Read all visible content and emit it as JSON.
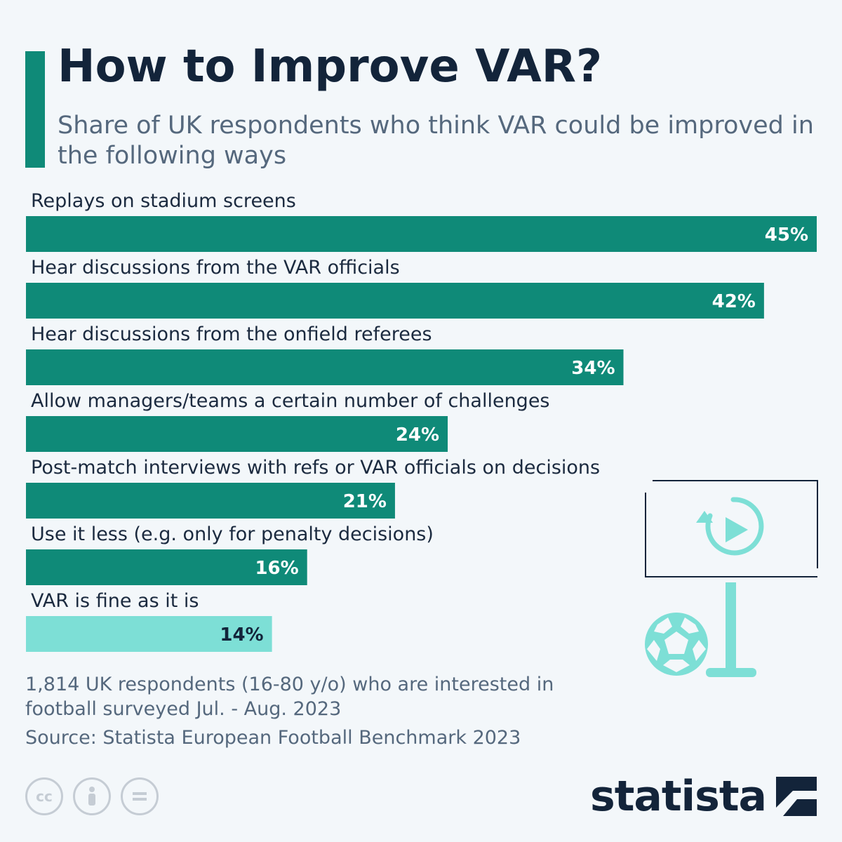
{
  "title": "How to Improve VAR?",
  "subtitle": "Share of UK respondents who think VAR could be improved in the following ways",
  "note": "1,814 UK respondents (16-80 y/o) who are interested in football surveyed Jul. - Aug. 2023",
  "source": "Source: Statista European Football Benchmark 2023",
  "brand": "statista",
  "license_icons": [
    "creative-commons-icon",
    "attribution-icon",
    "no-derivatives-icon"
  ],
  "colors": {
    "bar": "#0f8a78",
    "bar_highlight": "#7ddfd6",
    "label_on_bar": "#ffffff",
    "label_on_highlight": "#13243a",
    "illustration": "#7ddfd6"
  },
  "chart_data": {
    "type": "bar",
    "orientation": "horizontal",
    "categories": [
      "Replays on stadium screens",
      "Hear discussions from the VAR officials",
      "Hear discussions from the onfield referees",
      "Allow managers/teams a certain number of challenges",
      "Post-match interviews with refs or VAR officials on decisions",
      "Use it less (e.g. only for penalty decisions)",
      "VAR is fine as it is"
    ],
    "values": [
      45,
      42,
      34,
      24,
      21,
      16,
      14
    ],
    "value_labels": [
      "45%",
      "42%",
      "34%",
      "24%",
      "21%",
      "16%",
      "14%"
    ],
    "highlight_index": 6,
    "xlim": [
      0,
      45
    ],
    "unit": "%",
    "grid": false,
    "legend": "none"
  }
}
